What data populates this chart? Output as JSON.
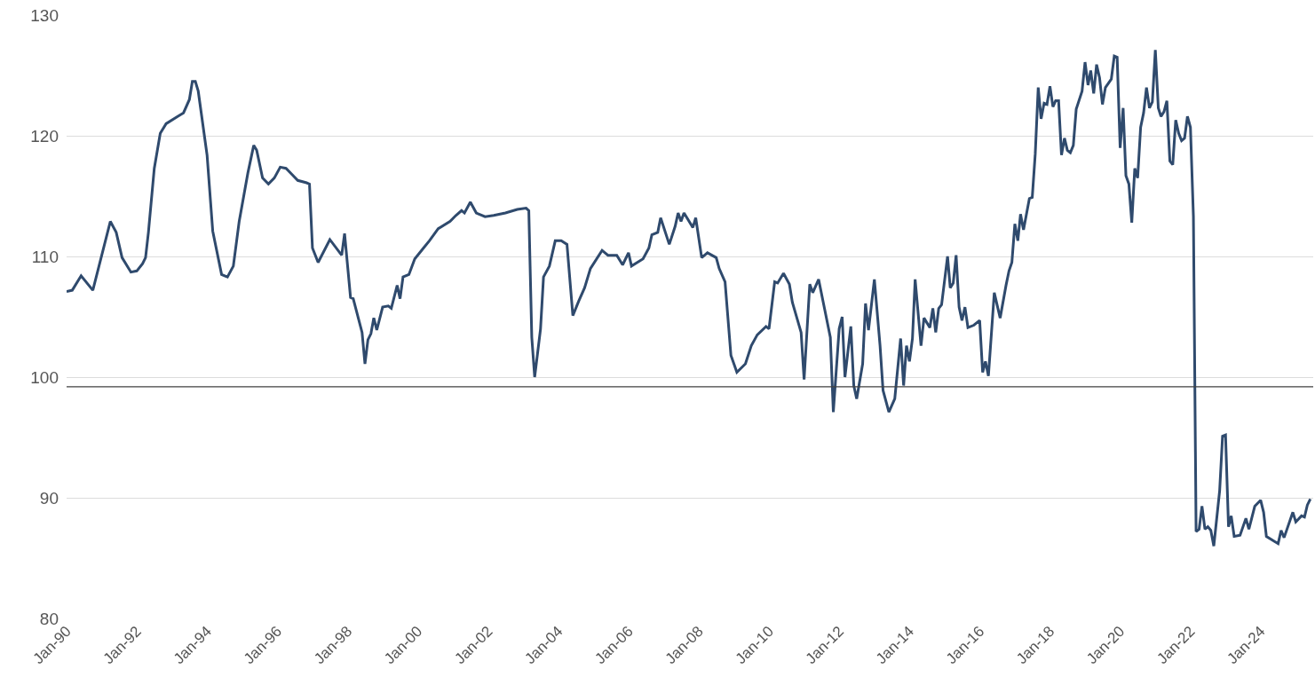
{
  "chart_data": {
    "type": "line",
    "grid": "y",
    "marker": "none",
    "line_style": "solid",
    "x": [
      "1990-01",
      "1990-03",
      "1990-06",
      "1990-10",
      "1991-04",
      "1991-06",
      "1991-08",
      "1991-11",
      "1992-01",
      "1992-03",
      "1992-04",
      "1992-05",
      "1992-07",
      "1992-09",
      "1992-11",
      "1993-03",
      "1993-05",
      "1993-07",
      "1993-08",
      "1993-09",
      "1993-10",
      "1994-01",
      "1994-03",
      "1994-06",
      "1994-08",
      "1994-10",
      "1994-12",
      "1995-03",
      "1995-05",
      "1995-06",
      "1995-08",
      "1995-10",
      "1995-12",
      "1996-02",
      "1996-04",
      "1996-06",
      "1996-08",
      "1996-11",
      "1996-12",
      "1997-01",
      "1997-03",
      "1997-07",
      "1997-11",
      "1997-12",
      "1998-02",
      "1998-03",
      "1998-06",
      "1998-07",
      "1998-08",
      "1998-09",
      "1998-10",
      "1998-11",
      "1999-01",
      "1999-03",
      "1999-04",
      "1999-06",
      "1999-07",
      "1999-08",
      "1999-10",
      "1999-12",
      "2000-03",
      "2000-05",
      "2000-08",
      "2000-12",
      "2001-02",
      "2001-04",
      "2001-05",
      "2001-07",
      "2001-09",
      "2001-12",
      "2002-03",
      "2002-07",
      "2002-11",
      "2003-02",
      "2003-03",
      "2003-04",
      "2003-05",
      "2003-07",
      "2003-08",
      "2003-10",
      "2003-12",
      "2004-02",
      "2004-04",
      "2004-06",
      "2004-08",
      "2004-10",
      "2004-12",
      "2005-04",
      "2005-06",
      "2005-09",
      "2005-11",
      "2006-01",
      "2006-02",
      "2006-06",
      "2006-08",
      "2006-09",
      "2006-11",
      "2006-12",
      "2007-03",
      "2007-05",
      "2007-06",
      "2007-07",
      "2007-08",
      "2007-11",
      "2007-12",
      "2008-02",
      "2008-04",
      "2008-07",
      "2008-08",
      "2008-10",
      "2008-12",
      "2009-02",
      "2009-05",
      "2009-07",
      "2009-09",
      "2009-12",
      "2010-01",
      "2010-03",
      "2010-04",
      "2010-06",
      "2010-08",
      "2010-09",
      "2010-12",
      "2011-01",
      "2011-03",
      "2011-04",
      "2011-06",
      "2011-08",
      "2011-10",
      "2011-11",
      "2012-01",
      "2012-02",
      "2012-03",
      "2012-05",
      "2012-06",
      "2012-07",
      "2012-09",
      "2012-10",
      "2012-11",
      "2013-01",
      "2013-03",
      "2013-04",
      "2013-06",
      "2013-08",
      "2013-10",
      "2013-11",
      "2013-12",
      "2014-01",
      "2014-02",
      "2014-03",
      "2014-05",
      "2014-06",
      "2014-08",
      "2014-09",
      "2014-10",
      "2014-11",
      "2014-12",
      "2015-02",
      "2015-03",
      "2015-04",
      "2015-05",
      "2015-06",
      "2015-07",
      "2015-08",
      "2015-09",
      "2015-11",
      "2016-01",
      "2016-02",
      "2016-03",
      "2016-04",
      "2016-06",
      "2016-08",
      "2016-10",
      "2016-11",
      "2016-12",
      "2017-01",
      "2017-02",
      "2017-03",
      "2017-04",
      "2017-06",
      "2017-07",
      "2017-08",
      "2017-09",
      "2017-10",
      "2017-11",
      "2017-12",
      "2018-01",
      "2018-02",
      "2018-03",
      "2018-04",
      "2018-05",
      "2018-06",
      "2018-07",
      "2018-08",
      "2018-09",
      "2018-10",
      "2018-12",
      "2019-01",
      "2019-02",
      "2019-03",
      "2019-04",
      "2019-05",
      "2019-06",
      "2019-07",
      "2019-08",
      "2019-10",
      "2019-11",
      "2019-12",
      "2020-01",
      "2020-02",
      "2020-03",
      "2020-04",
      "2020-05",
      "2020-06",
      "2020-07",
      "2020-08",
      "2020-09",
      "2020-10",
      "2020-11",
      "2020-12",
      "2021-01",
      "2021-02",
      "2021-03",
      "2021-04",
      "2021-05",
      "2021-06",
      "2021-07",
      "2021-08",
      "2021-09",
      "2021-10",
      "2021-11",
      "2021-12",
      "2022-01",
      "2022-02",
      "2022-03",
      "2022-04",
      "2022-05",
      "2022-06",
      "2022-07",
      "2022-08",
      "2022-09",
      "2022-11",
      "2022-12",
      "2023-01",
      "2023-02",
      "2023-03",
      "2023-04",
      "2023-06",
      "2023-08",
      "2023-09",
      "2023-11",
      "2024-01",
      "2024-02",
      "2024-03",
      "2024-07",
      "2024-08",
      "2024-09",
      "2024-12",
      "2025-01",
      "2025-03",
      "2025-04",
      "2025-05",
      "2025-06"
    ],
    "series": [
      {
        "color": "#2f4a6d",
        "values": [
          107.1,
          107.2,
          108.4,
          107.2,
          112.9,
          112.0,
          109.9,
          108.7,
          108.8,
          109.4,
          109.9,
          112.0,
          117.3,
          120.2,
          121.0,
          121.6,
          121.9,
          123.0,
          124.5,
          124.5,
          123.7,
          118.4,
          112.1,
          108.5,
          108.3,
          109.2,
          112.9,
          116.9,
          119.2,
          118.8,
          116.5,
          116.0,
          116.5,
          117.4,
          117.3,
          116.8,
          116.3,
          116.1,
          116.0,
          110.7,
          109.5,
          111.4,
          110.1,
          111.9,
          106.6,
          106.5,
          103.7,
          101.1,
          103.1,
          103.6,
          104.9,
          103.9,
          105.8,
          105.9,
          105.7,
          107.6,
          106.5,
          108.3,
          108.5,
          109.8,
          110.7,
          111.3,
          112.3,
          112.9,
          113.4,
          113.8,
          113.6,
          114.5,
          113.6,
          113.3,
          113.4,
          113.6,
          113.9,
          114.0,
          113.8,
          103.3,
          100.0,
          104.0,
          108.3,
          109.2,
          111.3,
          111.3,
          111.0,
          105.1,
          106.3,
          107.4,
          109.0,
          110.5,
          110.1,
          110.1,
          109.3,
          110.3,
          109.2,
          109.8,
          110.7,
          111.8,
          112.0,
          113.2,
          111.0,
          112.5,
          113.6,
          112.9,
          113.6,
          112.4,
          113.2,
          109.9,
          110.3,
          109.9,
          109.0,
          107.9,
          101.8,
          100.4,
          101.1,
          102.6,
          103.5,
          104.2,
          104.0,
          107.9,
          107.8,
          108.6,
          107.7,
          106.2,
          103.7,
          99.8,
          107.7,
          107.0,
          108.1,
          105.7,
          103.3,
          97.1,
          104.0,
          105.0,
          100.0,
          104.2,
          99.3,
          98.2,
          101.1,
          106.1,
          103.9,
          108.1,
          102.6,
          98.9,
          97.1,
          98.2,
          103.2,
          99.3,
          102.6,
          101.3,
          103.2,
          108.1,
          102.6,
          104.9,
          104.1,
          105.7,
          103.7,
          105.7,
          106.0,
          110.0,
          107.4,
          107.8,
          110.1,
          105.8,
          104.7,
          105.8,
          104.1,
          104.3,
          104.7,
          100.4,
          101.3,
          100.1,
          107.0,
          104.9,
          107.6,
          108.8,
          109.5,
          112.7,
          111.3,
          113.5,
          112.2,
          114.8,
          114.9,
          118.5,
          124.0,
          121.4,
          122.7,
          122.6,
          124.1,
          122.4,
          122.9,
          122.9,
          118.4,
          119.8,
          118.8,
          118.6,
          119.2,
          122.2,
          123.7,
          126.1,
          124.2,
          125.4,
          123.5,
          125.9,
          124.8,
          122.6,
          124.0,
          124.7,
          126.6,
          126.5,
          119.0,
          122.3,
          116.7,
          116.0,
          112.8,
          117.3,
          116.5,
          120.7,
          121.9,
          124.0,
          122.3,
          122.8,
          127.1,
          122.3,
          121.6,
          122.0,
          122.9,
          117.9,
          117.6,
          121.3,
          120.2,
          119.6,
          119.8,
          121.6,
          120.7,
          113.3,
          87.2,
          87.4,
          89.3,
          87.4,
          87.6,
          87.3,
          86.0,
          90.6,
          95.1,
          95.2,
          87.6,
          88.5,
          86.8,
          86.9,
          88.3,
          87.4,
          89.3,
          89.8,
          88.8,
          86.8,
          86.2,
          87.3,
          86.7,
          88.8,
          88.0,
          88.5,
          88.4,
          89.4,
          89.9
        ]
      }
    ],
    "xlim": [
      "1990-01",
      "2025-07"
    ],
    "xticks": [
      {
        "value": "1990-01",
        "label": "Jan-90"
      },
      {
        "value": "1992-01",
        "label": "Jan-92"
      },
      {
        "value": "1994-01",
        "label": "Jan-94"
      },
      {
        "value": "1996-01",
        "label": "Jan-96"
      },
      {
        "value": "1998-01",
        "label": "Jan-98"
      },
      {
        "value": "2000-01",
        "label": "Jan-00"
      },
      {
        "value": "2002-01",
        "label": "Jan-02"
      },
      {
        "value": "2004-01",
        "label": "Jan-04"
      },
      {
        "value": "2006-01",
        "label": "Jan-06"
      },
      {
        "value": "2008-01",
        "label": "Jan-08"
      },
      {
        "value": "2010-01",
        "label": "Jan-10"
      },
      {
        "value": "2012-01",
        "label": "Jan-12"
      },
      {
        "value": "2014-01",
        "label": "Jan-14"
      },
      {
        "value": "2016-01",
        "label": "Jan-16"
      },
      {
        "value": "2018-01",
        "label": "Jan-18"
      },
      {
        "value": "2020-01",
        "label": "Jan-20"
      },
      {
        "value": "2022-01",
        "label": "Jan-22"
      },
      {
        "value": "2024-01",
        "label": "Jan-24"
      }
    ],
    "ylim": [
      80,
      130
    ],
    "yticks": [
      80,
      90,
      100,
      110,
      120,
      130
    ],
    "ref_lines": [
      {
        "axis": "y",
        "value": 99.2,
        "color": "#404040",
        "line_style": "solid"
      }
    ]
  }
}
